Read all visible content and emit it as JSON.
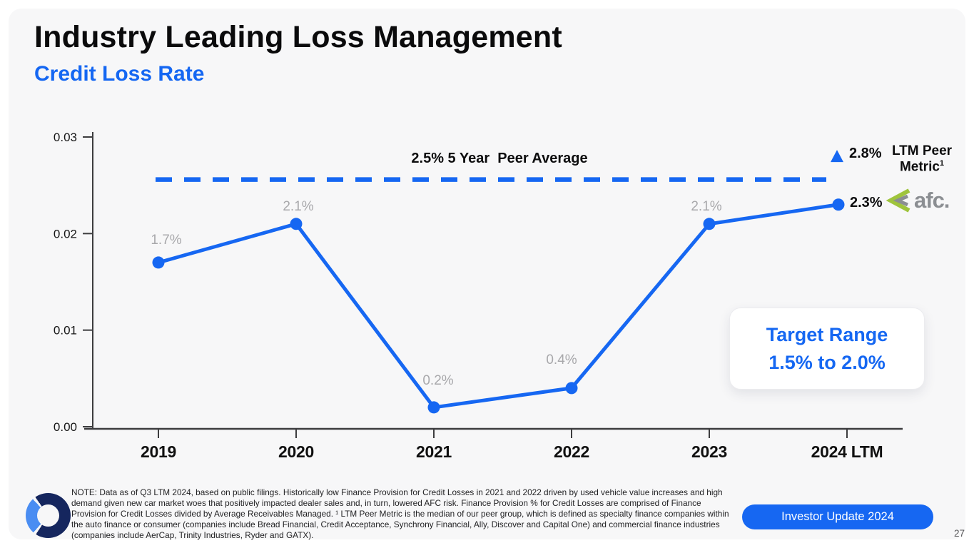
{
  "slide": {
    "title": "Industry Leading Loss Management",
    "subtitle": "Credit Loss Rate",
    "footer_button_label": "Investor Update 2024",
    "page_number": "27",
    "note": "NOTE: Data as of Q3 LTM 2024, based on public filings. Historically low Finance Provision for Credit Losses in 2021 and 2022 driven by used vehicle value increases and high demand given new car market woes that positively impacted dealer sales and, in turn, lowered AFC risk. Finance Provision % for Credit Losses are comprised of Finance Provision for Credit Losses divided by Average Receivables Managed. ¹ LTM Peer Metric is the median of our peer group, which is defined as specialty finance companies within the auto finance or consumer (companies include Bread Financial, Credit Acceptance, Synchrony Financial, Ally, Discover and Capital One) and commercial finance industries (companies include AerCap, Trinity Industries, Ryder and GATX)."
  },
  "target_range": {
    "title": "Target Range",
    "value": "1.5% to 2.0%"
  },
  "afc_logo": {
    "text": "afc."
  },
  "colors": {
    "accent_blue": "#1667f2",
    "gray_label": "#a8a8ab",
    "navy_logo": "#15265e",
    "light_blue_logo": "#4a8df2",
    "afc_gray": "#8b8e92",
    "afc_green": "#9fc43c"
  },
  "chart_data": {
    "type": "line",
    "title": "Credit Loss Rate",
    "categories": [
      "2019",
      "2020",
      "2021",
      "2022",
      "2023",
      "2024 LTM"
    ],
    "values": [
      0.017,
      0.021,
      0.002,
      0.004,
      0.021,
      0.023
    ],
    "point_labels": [
      "1.7%",
      "2.1%",
      "0.2%",
      "0.4%",
      "2.1%",
      ""
    ],
    "yticks": [
      0,
      0.01,
      0.02,
      0.03
    ],
    "ytick_labels": [
      "0.00",
      "0.01",
      "0.02",
      "0.03"
    ],
    "ylim": [
      0,
      0.03
    ],
    "grid": false,
    "legend": null,
    "peer_average": {
      "value": 0.025,
      "label": "2.5% 5 Year  Peer Average",
      "style": "dashed"
    },
    "ltm_peer": {
      "value": 0.028,
      "value_label": "2.8%",
      "name_line1": "LTM Peer",
      "name_line2": "Metric",
      "superscript": "1",
      "marker": "triangle-up"
    },
    "latest_point": {
      "value": 0.023,
      "label": "2.3%"
    }
  }
}
